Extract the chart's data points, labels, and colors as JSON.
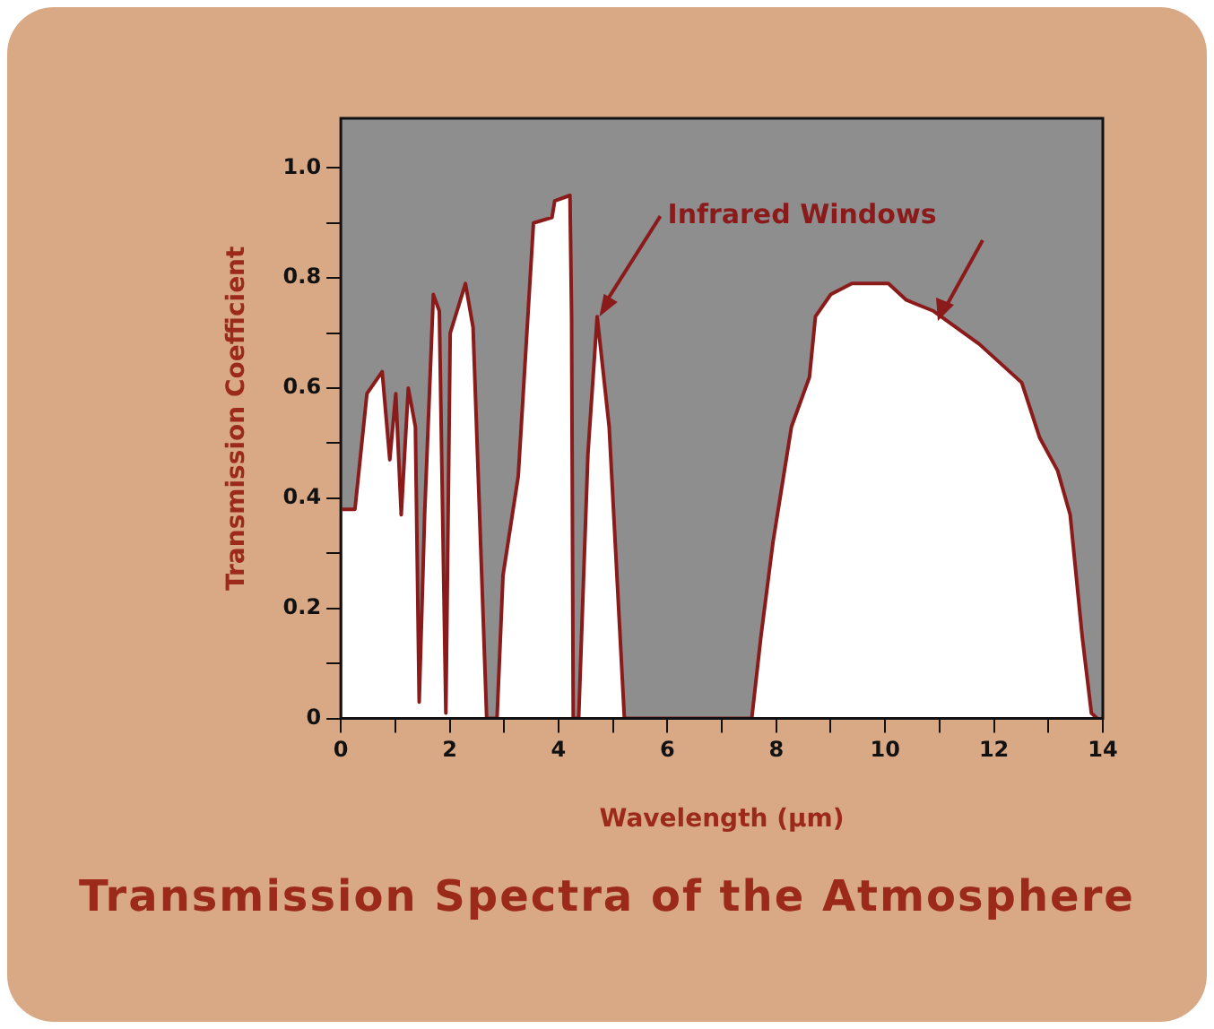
{
  "chart_data": {
    "type": "area",
    "title": "Transmission Spectra of the Atmosphere",
    "xlabel": "Wavelength (μm)",
    "ylabel": "Transmission Coefficient",
    "annotations": [
      {
        "text": "Infrared Windows",
        "x": 4.75,
        "y": 0.73
      }
    ],
    "xlim": [
      0,
      14
    ],
    "ylim": [
      0,
      1.09
    ],
    "xticks": [
      0,
      {
        "value": 1,
        "label": null
      },
      2,
      {
        "value": 3,
        "label": null
      },
      4,
      {
        "value": 5,
        "label": null
      },
      6,
      {
        "value": 7,
        "label": null
      },
      8,
      {
        "value": 9,
        "label": null
      },
      10,
      {
        "value": 11,
        "label": null
      },
      12,
      {
        "value": 13,
        "label": null
      },
      14
    ],
    "yticks": [
      0,
      {
        "value": 0.1,
        "label": null
      },
      0.2,
      {
        "value": 0.3,
        "label": null
      },
      0.4,
      {
        "value": 0.5,
        "label": null
      },
      0.6,
      {
        "value": 0.7,
        "label": null
      },
      0.8,
      {
        "value": 0.9,
        "label": null
      },
      {
        "value": 1,
        "label": "1.0"
      }
    ],
    "grid": false,
    "legend": false,
    "series": [
      {
        "color": "#8b1a1a",
        "x": [
          0.03,
          0.26,
          0.48,
          0.76,
          0.9,
          1.01,
          1.11,
          1.24,
          1.37,
          1.44,
          1.54,
          1.7,
          1.81,
          1.93,
          2.01,
          2.29,
          2.43,
          2.68,
          2.87,
          2.98,
          3.26,
          3.54,
          3.88,
          3.93,
          4.21,
          4.24,
          4.27,
          4.37,
          4.54,
          4.71,
          4.93,
          5.21,
          7.55,
          7.72,
          7.94,
          8.28,
          8.61,
          8.72,
          9.0,
          9.39,
          10.06,
          10.39,
          10.89,
          11.73,
          12.51,
          12.84,
          13.17,
          13.4,
          13.62,
          13.79,
          13.9
        ],
        "values": [
          0.38,
          0.38,
          0.59,
          0.63,
          0.47,
          0.59,
          0.37,
          0.6,
          0.53,
          0.03,
          0.37,
          0.77,
          0.74,
          0.01,
          0.7,
          0.79,
          0.71,
          0,
          0,
          0.26,
          0.44,
          0.9,
          0.91,
          0.94,
          0.95,
          0.73,
          0,
          0,
          0.48,
          0.73,
          0.53,
          0,
          0,
          0.15,
          0.32,
          0.53,
          0.62,
          0.73,
          0.77,
          0.79,
          0.79,
          0.76,
          0.74,
          0.68,
          0.61,
          0.51,
          0.45,
          0.37,
          0.15,
          0.01,
          0
        ]
      }
    ]
  }
}
